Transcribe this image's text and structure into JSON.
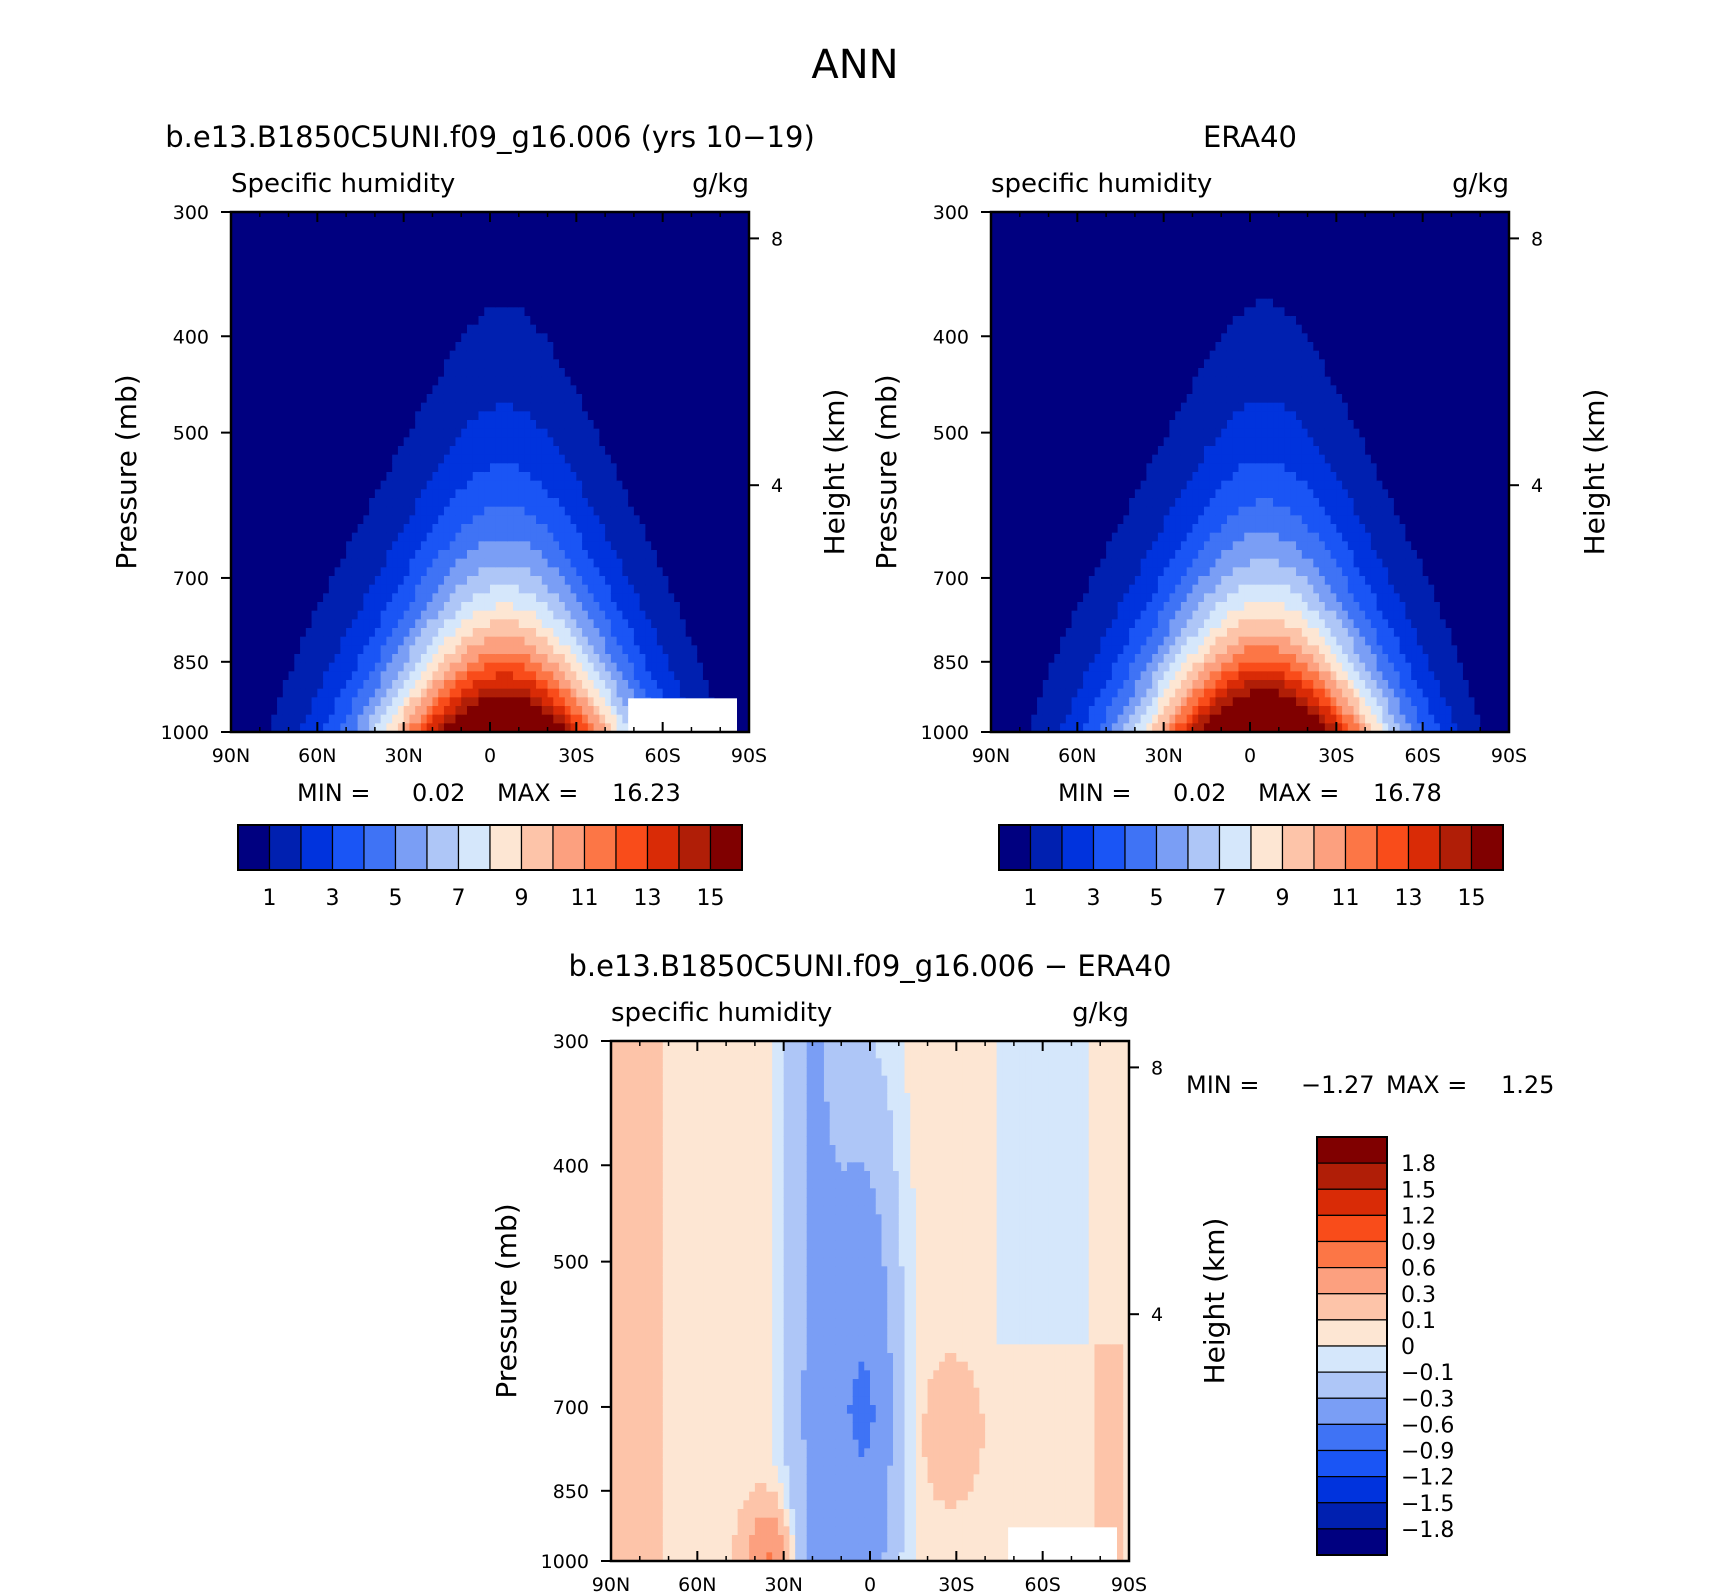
{
  "figure": {
    "title": "ANN"
  },
  "chart_data": [
    {
      "type": "heatmap",
      "title": "b.e13.B1850C5UNI.f09_g16.006 (yrs 10-19)",
      "variable_label": "Specific humidity",
      "units": "g/kg",
      "xlabel": "",
      "ylabel": "Pressure (mb)",
      "y2label": "Height (km)",
      "x_ticks": [
        "90N",
        "60N",
        "30N",
        "0",
        "30S",
        "60S",
        "90S"
      ],
      "y_ticks": [
        300,
        400,
        500,
        700,
        850,
        1000
      ],
      "y_log": true,
      "ylim": [
        1000,
        300
      ],
      "y2_ticks": [
        8,
        4
      ],
      "min_label": "MIN =",
      "min_value": "0.02",
      "max_label": "MAX =",
      "max_value": "16.23",
      "levels": [
        1,
        2,
        3,
        4,
        5,
        6,
        7,
        8,
        9,
        10,
        11,
        12,
        13,
        14,
        15
      ],
      "colorbar_labels": [
        "1",
        "3",
        "5",
        "7",
        "9",
        "11",
        "13",
        "15"
      ],
      "colors": [
        "#000080",
        "#0020b0",
        "#0033dd",
        "#1a55f5",
        "#3f73f5",
        "#7a9ef5",
        "#aec6f7",
        "#d5e7fb",
        "#fde6d3",
        "#fdc4a9",
        "#fca07f",
        "#fc7646",
        "#f94c1a",
        "#d92b06",
        "#b01e07",
        "#800000"
      ],
      "missing_region": "lower-right"
    },
    {
      "type": "heatmap",
      "title": "ERA40",
      "variable_label": "specific humidity",
      "units": "g/kg",
      "xlabel": "",
      "ylabel": "Pressure (mb)",
      "y2label": "Height (km)",
      "x_ticks": [
        "90N",
        "60N",
        "30N",
        "0",
        "30S",
        "60S",
        "90S"
      ],
      "y_ticks": [
        300,
        400,
        500,
        700,
        850,
        1000
      ],
      "y_log": true,
      "ylim": [
        1000,
        300
      ],
      "y2_ticks": [
        8,
        4
      ],
      "min_label": "MIN =",
      "min_value": "0.02",
      "max_label": "MAX =",
      "max_value": "16.78",
      "levels": [
        1,
        2,
        3,
        4,
        5,
        6,
        7,
        8,
        9,
        10,
        11,
        12,
        13,
        14,
        15
      ],
      "colorbar_labels": [
        "1",
        "3",
        "5",
        "7",
        "9",
        "11",
        "13",
        "15"
      ],
      "colors": [
        "#000080",
        "#0020b0",
        "#0033dd",
        "#1a55f5",
        "#3f73f5",
        "#7a9ef5",
        "#aec6f7",
        "#d5e7fb",
        "#fde6d3",
        "#fdc4a9",
        "#fca07f",
        "#fc7646",
        "#f94c1a",
        "#d92b06",
        "#b01e07",
        "#800000"
      ]
    },
    {
      "type": "heatmap",
      "title": "b.e13.B1850C5UNI.f09_g16.006 - ERA40",
      "variable_label": "specific humidity",
      "units": "g/kg",
      "xlabel": "",
      "ylabel": "Pressure (mb)",
      "y2label": "Height (km)",
      "x_ticks": [
        "90N",
        "60N",
        "30N",
        "0",
        "30S",
        "60S",
        "90S"
      ],
      "y_ticks": [
        300,
        400,
        500,
        700,
        850,
        1000
      ],
      "y_log": true,
      "ylim": [
        1000,
        300
      ],
      "y2_ticks": [
        8,
        4
      ],
      "min_label": "MIN =",
      "min_value": "-1.27",
      "max_label": "MAX =",
      "max_value": "1.25",
      "levels": [
        -1.8,
        -1.5,
        -1.2,
        -0.9,
        -0.6,
        -0.3,
        -0.1,
        0,
        0.1,
        0.3,
        0.6,
        0.9,
        1.2,
        1.5,
        1.8
      ],
      "colorbar_labels": [
        "1.8",
        "1.5",
        "1.2",
        "0.9",
        "0.6",
        "0.3",
        "0.1",
        "0",
        "-0.1",
        "-0.3",
        "-0.6",
        "-0.9",
        "-1.2",
        "-1.5",
        "-1.8"
      ],
      "colors": [
        "#000080",
        "#0020b0",
        "#0033dd",
        "#1a55f5",
        "#3f73f5",
        "#7a9ef5",
        "#aec6f7",
        "#d5e7fb",
        "#fde6d3",
        "#fdc4a9",
        "#fca07f",
        "#fc7646",
        "#f94c1a",
        "#d92b06",
        "#b01e07",
        "#800000"
      ],
      "missing_region": "lower-right"
    }
  ]
}
